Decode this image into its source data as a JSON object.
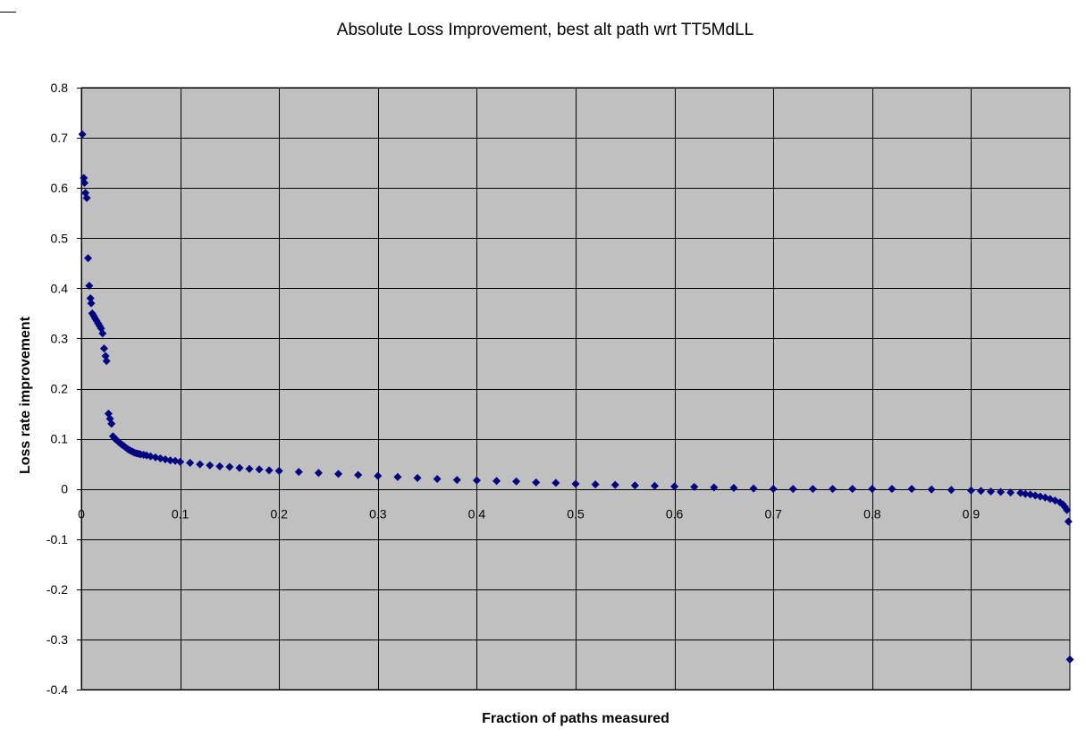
{
  "chart_data": {
    "type": "scatter",
    "title": "Absolute Loss Improvement, best alt path wrt TT5MdLL",
    "xlabel": "Fraction of paths measured",
    "ylabel": "Loss rate improvement",
    "xlim": [
      0,
      1
    ],
    "ylim": [
      -0.4,
      0.8
    ],
    "x_ticks": [
      0,
      0.1,
      0.2,
      0.3,
      0.4,
      0.5,
      0.6,
      0.7,
      0.8,
      0.9
    ],
    "x_tick_labels": [
      "0",
      "0.1",
      "0.2",
      "0.3",
      "0.4",
      "0.5",
      "0.6",
      "0.7",
      "0.8",
      "0.9"
    ],
    "y_ticks": [
      0.8,
      0.7,
      0.6,
      0.5,
      0.4,
      0.3,
      0.2,
      0.1,
      0,
      -0.1,
      -0.2,
      -0.3,
      -0.4
    ],
    "y_tick_labels": [
      "0.8",
      "0.7",
      "0.6",
      "0.5",
      "0.4",
      "0.3",
      "0.2",
      "0.1",
      "0",
      "-0.1",
      "-0.2",
      "-0.3",
      "-0.4"
    ],
    "grid": true,
    "legend": "none",
    "colors": {
      "plot_background": "#c0c0c0",
      "marker": "#000080",
      "gridline": "#000000"
    },
    "marker": "diamond",
    "series": [
      {
        "points": [
          [
            0.001,
            0.707
          ],
          [
            0.0025,
            0.62
          ],
          [
            0.0032,
            0.61
          ],
          [
            0.0042,
            0.59
          ],
          [
            0.0055,
            0.58
          ],
          [
            0.0068,
            0.46
          ],
          [
            0.008,
            0.405
          ],
          [
            0.0092,
            0.38
          ],
          [
            0.01,
            0.37
          ],
          [
            0.011,
            0.35
          ],
          [
            0.0125,
            0.345
          ],
          [
            0.014,
            0.34
          ],
          [
            0.0155,
            0.335
          ],
          [
            0.017,
            0.33
          ],
          [
            0.0185,
            0.325
          ],
          [
            0.02,
            0.32
          ],
          [
            0.0215,
            0.31
          ],
          [
            0.023,
            0.28
          ],
          [
            0.0245,
            0.265
          ],
          [
            0.0255,
            0.255
          ],
          [
            0.0275,
            0.15
          ],
          [
            0.029,
            0.14
          ],
          [
            0.0305,
            0.13
          ],
          [
            0.032,
            0.105
          ],
          [
            0.034,
            0.1
          ],
          [
            0.036,
            0.097
          ],
          [
            0.038,
            0.093
          ],
          [
            0.04,
            0.09
          ],
          [
            0.042,
            0.087
          ],
          [
            0.044,
            0.084
          ],
          [
            0.046,
            0.081
          ],
          [
            0.048,
            0.078
          ],
          [
            0.05,
            0.076
          ],
          [
            0.052,
            0.074
          ],
          [
            0.054,
            0.072
          ],
          [
            0.056,
            0.071
          ],
          [
            0.058,
            0.07
          ],
          [
            0.06,
            0.069
          ],
          [
            0.063,
            0.068
          ],
          [
            0.066,
            0.067
          ],
          [
            0.07,
            0.065
          ],
          [
            0.075,
            0.063
          ],
          [
            0.08,
            0.061
          ],
          [
            0.085,
            0.059
          ],
          [
            0.09,
            0.057
          ],
          [
            0.095,
            0.056
          ],
          [
            0.1,
            0.054
          ],
          [
            0.11,
            0.052
          ],
          [
            0.12,
            0.049
          ],
          [
            0.13,
            0.047
          ],
          [
            0.14,
            0.045
          ],
          [
            0.15,
            0.044
          ],
          [
            0.16,
            0.042
          ],
          [
            0.17,
            0.04
          ],
          [
            0.18,
            0.039
          ],
          [
            0.19,
            0.037
          ],
          [
            0.2,
            0.036
          ],
          [
            0.22,
            0.034
          ],
          [
            0.24,
            0.032
          ],
          [
            0.26,
            0.03
          ],
          [
            0.28,
            0.028
          ],
          [
            0.3,
            0.026
          ],
          [
            0.32,
            0.024
          ],
          [
            0.34,
            0.022
          ],
          [
            0.36,
            0.02
          ],
          [
            0.38,
            0.018
          ],
          [
            0.4,
            0.017
          ],
          [
            0.42,
            0.016
          ],
          [
            0.44,
            0.015
          ],
          [
            0.46,
            0.013
          ],
          [
            0.48,
            0.012
          ],
          [
            0.5,
            0.01
          ],
          [
            0.52,
            0.009
          ],
          [
            0.54,
            0.008
          ],
          [
            0.56,
            0.007
          ],
          [
            0.58,
            0.006
          ],
          [
            0.6,
            0.005
          ],
          [
            0.62,
            0.004
          ],
          [
            0.64,
            0.003
          ],
          [
            0.66,
            0.002
          ],
          [
            0.68,
            0.001
          ],
          [
            0.7,
            0.0
          ],
          [
            0.72,
            0.0
          ],
          [
            0.74,
            0.0
          ],
          [
            0.76,
            0.0
          ],
          [
            0.78,
            0.0
          ],
          [
            0.8,
            0.0
          ],
          [
            0.82,
            0.0
          ],
          [
            0.84,
            0.0
          ],
          [
            0.86,
            -0.001
          ],
          [
            0.88,
            -0.002
          ],
          [
            0.9,
            -0.003
          ],
          [
            0.91,
            -0.004
          ],
          [
            0.92,
            -0.005
          ],
          [
            0.93,
            -0.006
          ],
          [
            0.94,
            -0.007
          ],
          [
            0.95,
            -0.008
          ],
          [
            0.955,
            -0.01
          ],
          [
            0.96,
            -0.011
          ],
          [
            0.965,
            -0.013
          ],
          [
            0.97,
            -0.015
          ],
          [
            0.975,
            -0.017
          ],
          [
            0.98,
            -0.02
          ],
          [
            0.985,
            -0.023
          ],
          [
            0.99,
            -0.027
          ],
          [
            0.993,
            -0.031
          ],
          [
            0.995,
            -0.036
          ],
          [
            0.997,
            -0.042
          ],
          [
            0.9985,
            -0.065
          ],
          [
            1.0,
            -0.34
          ]
        ]
      }
    ]
  }
}
